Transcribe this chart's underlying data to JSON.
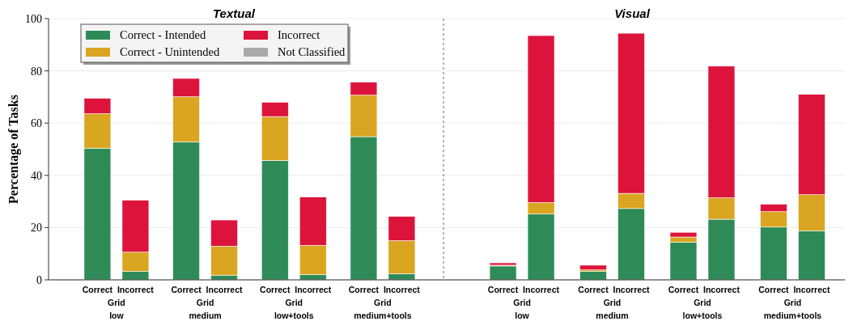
{
  "chart_data": [
    {
      "type": "bar",
      "title": "Textual",
      "ylabel": "Percentage of Tasks",
      "stacked": true,
      "categories": [
        "Correct",
        "Incorrect",
        "Correct",
        "Incorrect",
        "Correct",
        "Incorrect",
        "Correct",
        "Incorrect"
      ],
      "series": [
        {
          "name": "Correct - Intended",
          "color": "#2e8b57",
          "values": [
            50.4,
            3.2,
            52.8,
            1.8,
            45.7,
            2.0,
            54.8,
            2.3
          ]
        },
        {
          "name": "Correct - Unintended",
          "color": "#daa520",
          "values": [
            13.2,
            7.4,
            17.3,
            11.1,
            16.8,
            11.2,
            15.9,
            12.7
          ]
        },
        {
          "name": "Incorrect",
          "color": "#dc143c",
          "values": [
            5.9,
            19.9,
            7.0,
            10.0,
            5.5,
            18.5,
            5.0,
            9.3
          ]
        },
        {
          "name": "Not Classified",
          "color": "#aaaaaa",
          "values": [
            0,
            0,
            0,
            0,
            0,
            0,
            0,
            0
          ]
        }
      ],
      "annotations": [
        "Grid low",
        "Grid medium",
        "Grid low+tools",
        "Grid medium+tools"
      ],
      "ylim": [
        0,
        100
      ],
      "yticks": [
        0,
        20,
        40,
        60,
        80,
        100
      ],
      "grid": "y",
      "legend": "top left"
    },
    {
      "type": "bar",
      "title": "Visual",
      "stacked": true,
      "categories": [
        "Correct",
        "Incorrect",
        "Correct",
        "Incorrect",
        "Correct",
        "Incorrect",
        "Correct",
        "Incorrect"
      ],
      "series": [
        {
          "color": "#2e8b57",
          "values": [
            5.3,
            25.2,
            3.2,
            27.3,
            14.4,
            23.2,
            20.2,
            18.8
          ]
        },
        {
          "color": "#daa520",
          "values": [
            0.3,
            4.4,
            0.6,
            5.8,
            2.0,
            8.2,
            5.9,
            13.8
          ]
        },
        {
          "color": "#dc143c",
          "values": [
            0.9,
            63.9,
            1.8,
            61.3,
            1.8,
            50.4,
            2.9,
            38.4
          ]
        },
        {
          "color": "#aaaaaa",
          "values": [
            0,
            0,
            0,
            0,
            0,
            0,
            0,
            0
          ]
        }
      ],
      "annotations": [
        "Grid low",
        "Grid medium",
        "Grid low+tools",
        "Grid medium+tools"
      ],
      "ylim": [
        0,
        100
      ],
      "yticks": [
        0,
        20,
        40,
        60,
        80,
        100
      ],
      "grid": "y",
      "tick_labels": "x",
      "legend": false
    }
  ]
}
